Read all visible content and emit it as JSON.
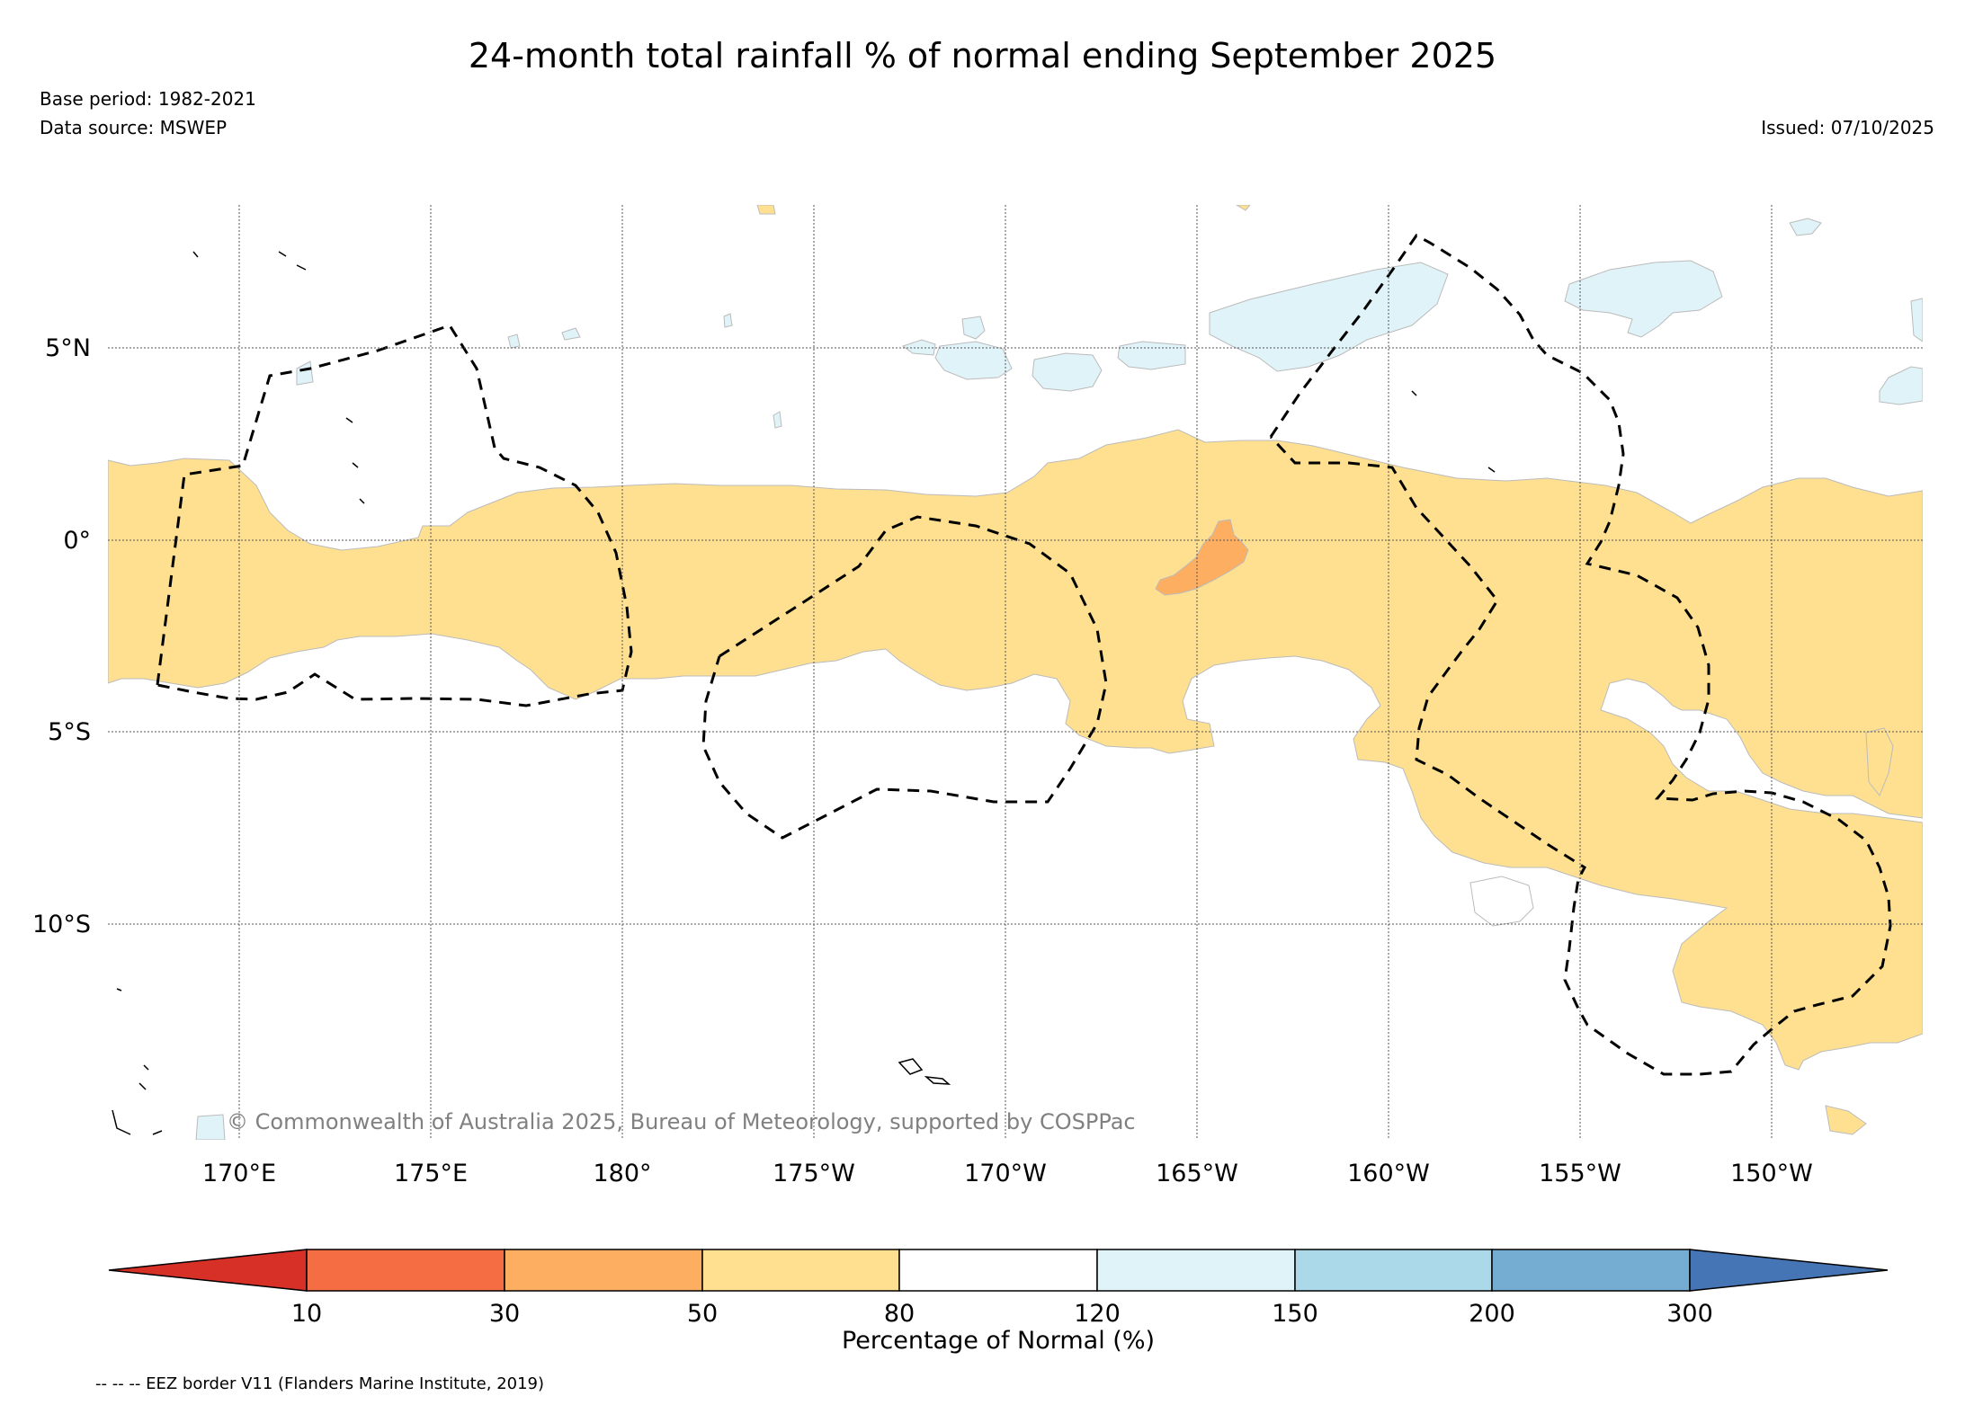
{
  "title": "24-month total rainfall % of normal ending September 2025",
  "base_period": "Base period: 1982-2021",
  "data_source": "Data source: MSWEP",
  "issued": "Issued: 07/10/2025",
  "map": {
    "lat_labels": [
      "5°N",
      "0°",
      "5°S",
      "10°S"
    ],
    "lon_labels": [
      "170°E",
      "175°E",
      "180°",
      "175°W",
      "170°W",
      "165°W",
      "160°W",
      "155°W",
      "150°W"
    ],
    "copyright": "© Commonwealth of Australia 2025, Bureau of Meteorology, supported by COSPPac"
  },
  "legend": {
    "title": "Percentage of Normal (%)",
    "ticks": [
      "10",
      "30",
      "50",
      "80",
      "120",
      "150",
      "200",
      "300"
    ],
    "colors": [
      "#d73027",
      "#f46d43",
      "#fdae61",
      "#fee090",
      "#ffffff",
      "#e0f3f8",
      "#abd9e9",
      "#74add1",
      "#4575b4"
    ]
  },
  "footnote": "-- -- -- EEZ border V11 (Flanders Marine Institute, 2019)"
}
